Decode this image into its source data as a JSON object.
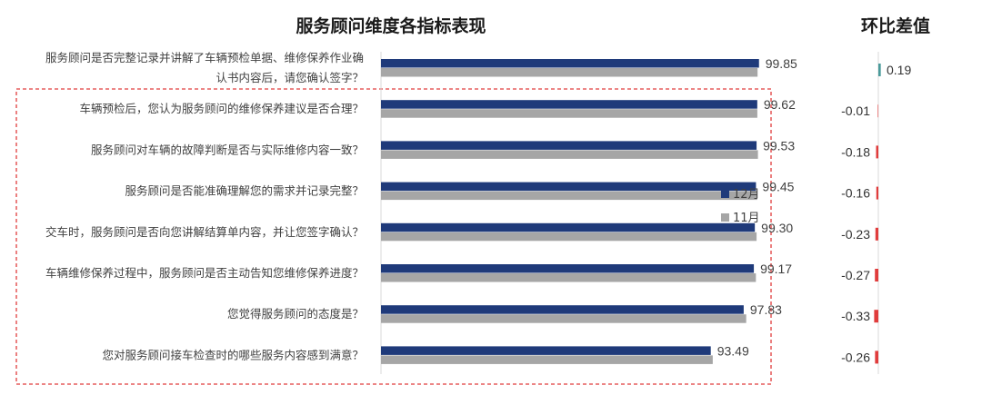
{
  "chart_data": {
    "type": "bar",
    "orientation": "horizontal",
    "title": "服务顾问维度各指标表现",
    "categories": [
      [
        "服务顾问是否完整记录并讲解了车辆预检单据、维修保养作业确",
        "认书内容后，请您确认签字？"
      ],
      [
        "车辆预检后，您认为服务顾问的维修保养建议是否合理？"
      ],
      [
        "服务顾问对车辆的故障判断是否与实际维修内容一致？"
      ],
      [
        "服务顾问是否能准确理解您的需求并记录完整？"
      ],
      [
        "交车时，服务顾问是否向您讲解结算单内容，并让您签字确认？"
      ],
      [
        "车辆维修保养过程中，服务顾问是否主动告知您维修保养进度？"
      ],
      [
        "您觉得服务顾问的态度是？"
      ],
      [
        "您对服务顾问接车检查时的哪些服务内容感到满意？"
      ]
    ],
    "series": [
      {
        "name": "12月",
        "color": "#1f3a7a",
        "values": [
          99.85,
          99.62,
          99.53,
          99.45,
          99.3,
          99.17,
          97.83,
          93.49
        ]
      },
      {
        "name": "11月",
        "color": "#a6a6a6",
        "values": [
          99.66,
          99.63,
          99.71,
          99.61,
          99.53,
          99.44,
          98.16,
          93.75
        ]
      }
    ],
    "value_labels": [
      "99.85",
      "99.62",
      "99.53",
      "99.45",
      "99.30",
      "99.17",
      "97.83",
      "93.49"
    ],
    "xlim": [
      50,
      100
    ],
    "legend_position": "right",
    "diff": {
      "title": "环比差值",
      "values": [
        0.19,
        -0.01,
        -0.18,
        -0.16,
        -0.23,
        -0.27,
        -0.33,
        -0.26
      ],
      "labels": [
        "0.19",
        "-0.01",
        "-0.18",
        "-0.16",
        "-0.23",
        "-0.27",
        "-0.33",
        "-0.26"
      ],
      "positive_color": "#4a9a9a",
      "negative_color": "#e03c3c"
    },
    "highlight": {
      "from_index": 1,
      "to_index": 7,
      "color": "#e03c3c"
    }
  }
}
